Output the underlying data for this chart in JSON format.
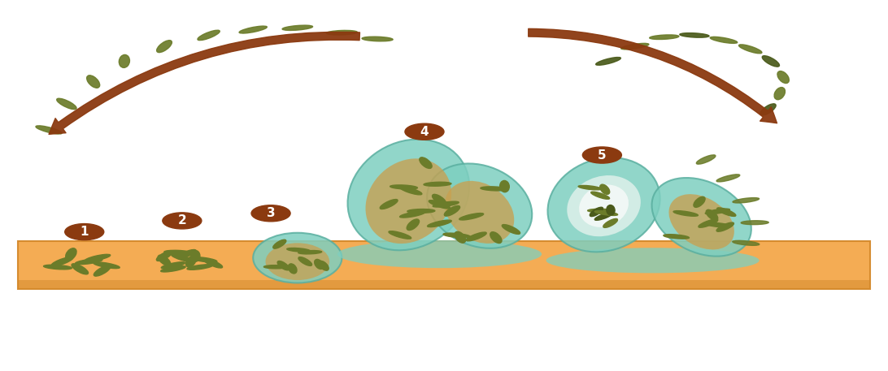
{
  "bg_color": "#ffffff",
  "surface_color": "#F4A84B",
  "surface_edge_color": "#D4892B",
  "biofilm_color": "#7ECFC0",
  "biofilm_edge_color": "#5AAFA0",
  "bacteria_color": "#6B7C2A",
  "bacteria_dark": "#4A5A1A",
  "arrow_color": "#8B3A10",
  "number_bg": "#8B3A10",
  "number_text": "#ffffff",
  "figsize": [
    10.92,
    4.57
  ],
  "dpi": 100
}
